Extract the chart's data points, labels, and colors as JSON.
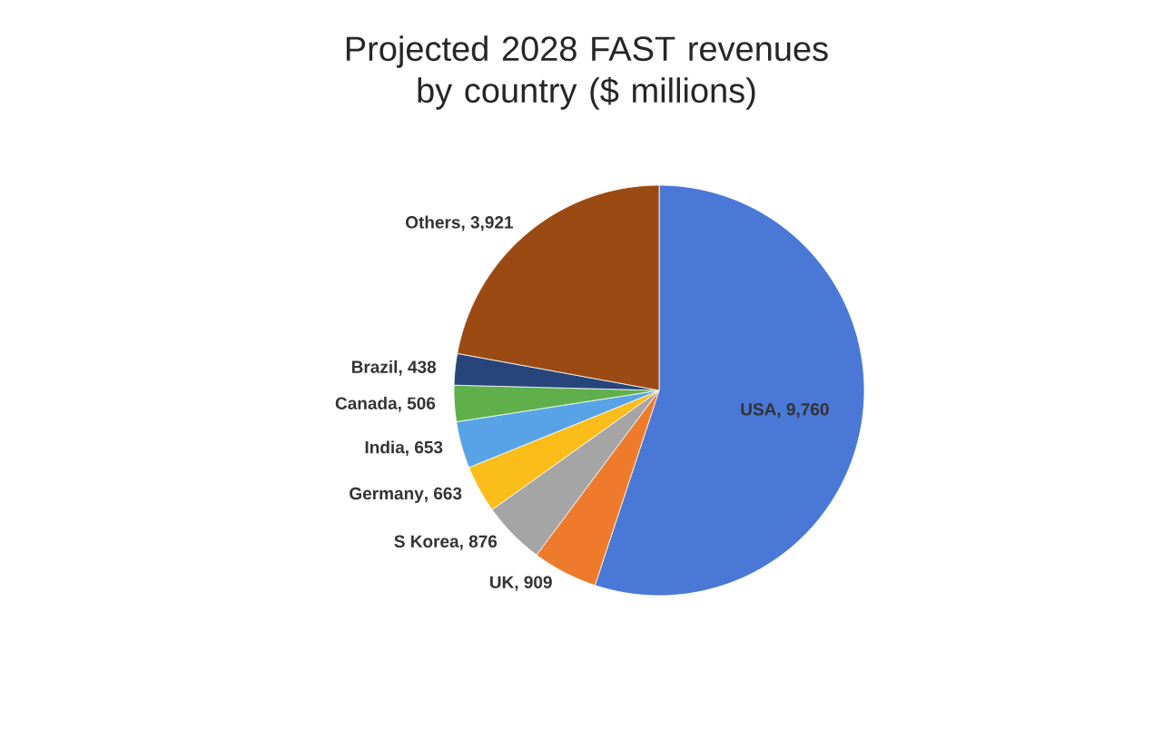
{
  "chart_data": {
    "type": "pie",
    "title": "Projected 2028 FAST revenues by country ($ millions)",
    "categories": [
      "USA",
      "UK",
      "S Korea",
      "Germany",
      "India",
      "Canada",
      "Brazil",
      "Others"
    ],
    "values": [
      9760,
      909,
      876,
      663,
      653,
      506,
      438,
      3921
    ],
    "value_labels": [
      ", 9,760",
      ", 909",
      ", 876",
      ", 663",
      ", 653",
      ", 506",
      ", 438",
      ", 3,921"
    ],
    "colors": [
      "#4a78d6",
      "#ef7a2c",
      "#a5a5a5",
      "#fbbd1a",
      "#58a3e6",
      "#5fb04a",
      "#27457a",
      "#9c4a13"
    ]
  }
}
